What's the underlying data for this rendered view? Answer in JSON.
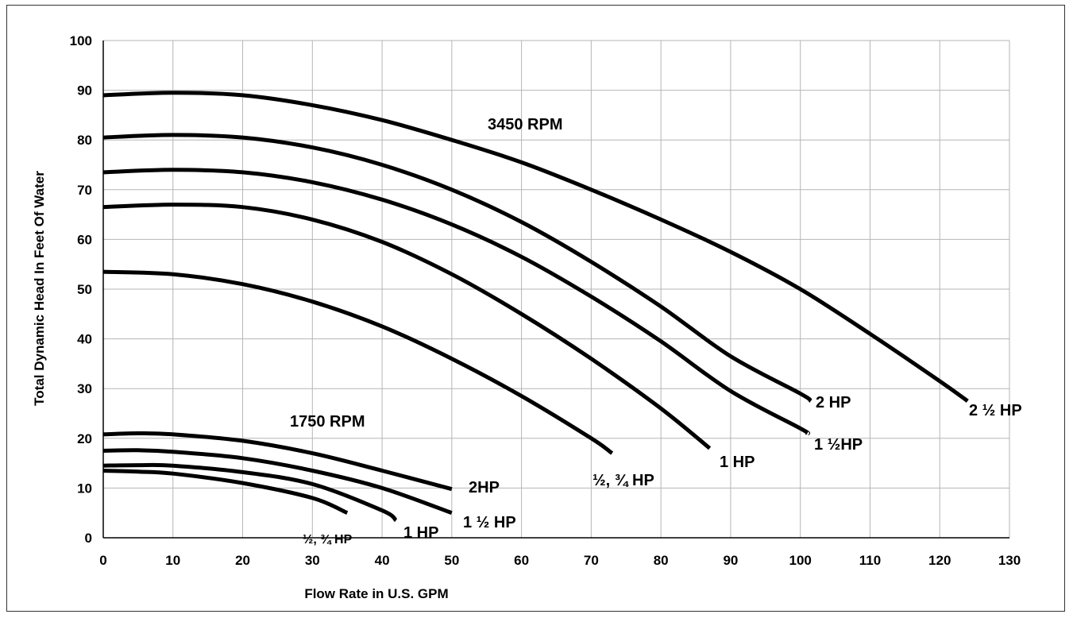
{
  "chart_data": {
    "type": "line",
    "xlabel": "Flow Rate in U.S. GPM",
    "ylabel": "Total Dynamic Head In Feet Of Water",
    "xlim": [
      0,
      130
    ],
    "ylim": [
      0,
      100
    ],
    "x_ticks": [
      "0",
      "10",
      "20",
      "30",
      "40",
      "50",
      "60",
      "70",
      "80",
      "90",
      "100",
      "110",
      "120",
      "130"
    ],
    "y_ticks": [
      "0",
      "10",
      "20",
      "30",
      "40",
      "50",
      "60",
      "70",
      "80",
      "90",
      "100"
    ],
    "grid": true,
    "annotations": {
      "rpm_3450": "3450 RPM",
      "rpm_1750": "1750 RPM",
      "hp_2_half_3450": "2 ½ HP",
      "hp_2_3450": "2 HP",
      "hp_1_half_3450": "1 ½HP",
      "hp_1_3450": "1 HP",
      "hp_half_3q_3450": "½, ¾ HP",
      "hp_2_1750": "2HP",
      "hp_1_half_1750": "1 ½ HP",
      "hp_1_1750": "1 HP",
      "hp_half_3q_1750": "½, ¾ HP"
    },
    "series": [
      {
        "x": [
          0,
          10,
          20,
          30,
          40,
          50,
          60,
          70,
          80,
          90,
          100,
          110,
          120,
          124
        ],
        "y": [
          89,
          89.5,
          89,
          87,
          84,
          80,
          75.5,
          70,
          64,
          57.5,
          50,
          41,
          31.5,
          27.5
        ]
      },
      {
        "x": [
          0,
          10,
          20,
          30,
          40,
          50,
          60,
          70,
          80,
          90,
          100,
          101.5
        ],
        "y": [
          80.5,
          81,
          80.5,
          78.5,
          75,
          70,
          63.5,
          55.5,
          46.5,
          36.5,
          29,
          27.5
        ]
      },
      {
        "x": [
          0,
          10,
          20,
          30,
          40,
          50,
          60,
          70,
          80,
          90,
          100,
          101
        ],
        "y": [
          73.5,
          74,
          73.5,
          71.5,
          68,
          63,
          56.5,
          48.5,
          39.5,
          29.5,
          22,
          21
        ]
      },
      {
        "x": [
          0,
          10,
          20,
          30,
          40,
          50,
          60,
          70,
          80,
          87
        ],
        "y": [
          66.5,
          67,
          66.5,
          64,
          59.5,
          53,
          45,
          36,
          26,
          18
        ]
      },
      {
        "x": [
          0,
          10,
          20,
          30,
          40,
          50,
          60,
          70,
          73
        ],
        "y": [
          53.5,
          53,
          51,
          47.5,
          42.5,
          36,
          28.5,
          20,
          17
        ]
      },
      {
        "x": [
          0,
          5,
          10,
          20,
          30,
          40,
          50
        ],
        "y": [
          20.8,
          21,
          20.8,
          19.5,
          17,
          13.5,
          9.8
        ]
      },
      {
        "x": [
          0,
          5,
          10,
          20,
          30,
          40,
          50
        ],
        "y": [
          17.5,
          17.6,
          17.3,
          16,
          13.5,
          10,
          5
        ]
      },
      {
        "x": [
          0,
          5,
          10,
          20,
          30,
          40,
          42
        ],
        "y": [
          14.5,
          14.6,
          14.5,
          13.2,
          10.8,
          5.5,
          3.5
        ]
      },
      {
        "x": [
          0,
          5,
          10,
          20,
          30,
          35
        ],
        "y": [
          13.5,
          13.3,
          12.9,
          11,
          8,
          5
        ]
      }
    ]
  }
}
